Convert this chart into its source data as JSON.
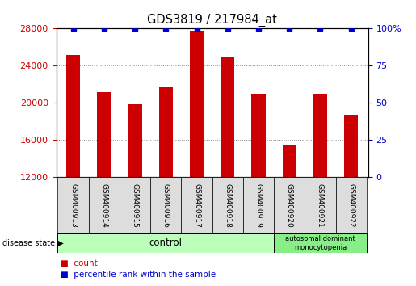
{
  "title": "GDS3819 / 217984_at",
  "samples": [
    "GSM400913",
    "GSM400914",
    "GSM400915",
    "GSM400916",
    "GSM400917",
    "GSM400918",
    "GSM400919",
    "GSM400920",
    "GSM400921",
    "GSM400922"
  ],
  "bar_values": [
    25200,
    21200,
    19900,
    21700,
    27800,
    25000,
    21000,
    15500,
    21000,
    18700
  ],
  "percentile_values": [
    100,
    100,
    100,
    100,
    100,
    100,
    100,
    100,
    100,
    100
  ],
  "ylim": [
    12000,
    28000
  ],
  "right_ylim": [
    0,
    100
  ],
  "yticks_left": [
    12000,
    16000,
    20000,
    24000,
    28000
  ],
  "yticks_right": [
    0,
    25,
    50,
    75,
    100
  ],
  "bar_color": "#cc0000",
  "percentile_color": "#0000cc",
  "control_color": "#bbffbb",
  "disease_color": "#88ee88",
  "disease_label": "autosomal dominant\nmonocytopenia",
  "control_label": "control",
  "legend_count_label": "count",
  "legend_percentile_label": "percentile rank within the sample",
  "disease_state_label": "disease state",
  "n_control": 7,
  "n_disease": 3,
  "sample_box_color": "#dddddd",
  "bar_width": 0.45
}
